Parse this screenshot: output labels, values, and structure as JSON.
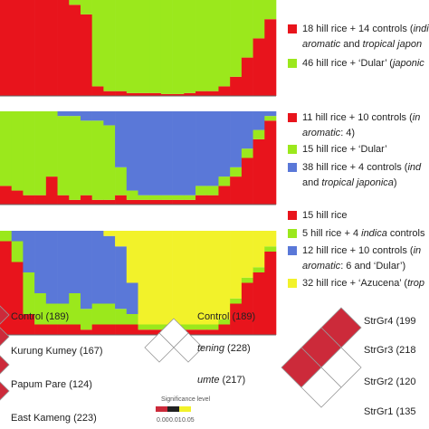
{
  "panels": [
    {
      "series": [
        {
          "color": "#e8141c",
          "values": [
            1,
            1,
            1,
            1,
            1,
            1,
            0.95,
            0.85,
            0.1,
            0.05,
            0.05,
            0.03,
            0.03,
            0.03,
            0.02,
            0.02,
            0.03,
            0.05,
            0.05,
            0.1,
            0.2,
            0.4,
            0.6,
            0.8
          ]
        },
        {
          "color": "#9be81c",
          "values": [
            0,
            0,
            0,
            0,
            0,
            0,
            0.05,
            0.15,
            0.9,
            0.95,
            0.95,
            0.97,
            0.97,
            0.97,
            0.98,
            0.98,
            0.97,
            0.95,
            0.95,
            0.9,
            0.8,
            0.6,
            0.4,
            0.2
          ]
        }
      ],
      "legend": [
        {
          "color": "#e8141c",
          "lines": [
            [
              {
                "text": "18 hill rice + 14 controls ("
              },
              {
                "text": "indic",
                "italic": true
              }
            ],
            [
              {
                "text": "aromatic",
                "italic": true
              },
              {
                "text": " and "
              },
              {
                "text": "tropical japon",
                "italic": true
              }
            ]
          ]
        },
        {
          "color": "#9be81c",
          "lines": [
            [
              {
                "text": "46 hill rice + ‘Dular’ ("
              },
              {
                "text": "japonic",
                "italic": true
              }
            ]
          ]
        }
      ]
    },
    {
      "series": [
        {
          "color": "#e8141c",
          "values": [
            0.2,
            0.15,
            0.1,
            0.1,
            0.3,
            0.1,
            0.05,
            0.1,
            0.05,
            0.05,
            0.1,
            0.05,
            0.05,
            0.05,
            0.05,
            0.05,
            0.05,
            0.1,
            0.1,
            0.2,
            0.3,
            0.5,
            0.7,
            0.9
          ]
        },
        {
          "color": "#9be81c",
          "values": [
            0.8,
            0.85,
            0.9,
            0.9,
            0.7,
            0.85,
            0.9,
            0.8,
            0.85,
            0.8,
            0.3,
            0.1,
            0.05,
            0.05,
            0.05,
            0.05,
            0.05,
            0.1,
            0.1,
            0.1,
            0.1,
            0.1,
            0.1,
            0.05
          ]
        },
        {
          "color": "#5a78d8",
          "values": [
            0,
            0,
            0,
            0,
            0,
            0.05,
            0.05,
            0.1,
            0.1,
            0.15,
            0.6,
            0.85,
            0.9,
            0.9,
            0.9,
            0.9,
            0.9,
            0.8,
            0.8,
            0.7,
            0.6,
            0.4,
            0.2,
            0.05
          ]
        }
      ],
      "legend": [
        {
          "color": "#e8141c",
          "lines": [
            [
              {
                "text": "11 hill rice + 10 controls ("
              },
              {
                "text": "in",
                "italic": true
              }
            ],
            [
              {
                "text": "aromatic",
                "italic": true
              },
              {
                "text": ": 4)"
              }
            ]
          ]
        },
        {
          "color": "#9be81c",
          "lines": [
            [
              {
                "text": "15 hill rice + ‘Dular’"
              }
            ]
          ]
        },
        {
          "color": "#5a78d8",
          "lines": [
            [
              {
                "text": "38 hill rice + 4 controls ("
              },
              {
                "text": "ind",
                "italic": true
              }
            ],
            [
              {
                "text": "and "
              },
              {
                "text": "tropical japonica",
                "italic": true
              },
              {
                "text": ")"
              }
            ]
          ]
        }
      ]
    },
    {
      "series": [
        {
          "color": "#e8141c",
          "values": [
            0.9,
            0.7,
            0.2,
            0.1,
            0.1,
            0.1,
            0.1,
            0.05,
            0.1,
            0.1,
            0.1,
            0.1,
            0.05,
            0.05,
            0.05,
            0.05,
            0.05,
            0.05,
            0.05,
            0.1,
            0.3,
            0.5,
            0.6,
            0.8
          ]
        },
        {
          "color": "#9be81c",
          "values": [
            0.1,
            0.2,
            0.4,
            0.3,
            0.2,
            0.2,
            0.3,
            0.2,
            0.2,
            0.2,
            0.15,
            0.1,
            0.05,
            0.05,
            0.05,
            0.05,
            0.05,
            0.05,
            0.05,
            0.05,
            0.05,
            0.05,
            0.05,
            0.05
          ]
        },
        {
          "color": "#5a78d8",
          "values": [
            0,
            0.1,
            0.4,
            0.6,
            0.7,
            0.7,
            0.6,
            0.75,
            0.7,
            0.65,
            0.6,
            0.3,
            0,
            0,
            0,
            0,
            0,
            0,
            0,
            0,
            0,
            0,
            0,
            0
          ]
        },
        {
          "color": "#f2f22a",
          "values": [
            0,
            0,
            0,
            0,
            0,
            0,
            0,
            0,
            0,
            0.05,
            0.15,
            0.5,
            0.9,
            0.9,
            0.9,
            0.9,
            0.9,
            0.9,
            0.9,
            0.85,
            0.65,
            0.45,
            0.35,
            0.15
          ]
        }
      ],
      "legend": [
        {
          "color": "#e8141c",
          "lines": [
            [
              {
                "text": "15 hill rice"
              }
            ]
          ]
        },
        {
          "color": "#9be81c",
          "lines": [
            [
              {
                "text": "5 hill rice + 4 "
              },
              {
                "text": "indica",
                "italic": true
              },
              {
                "text": " controls"
              }
            ]
          ]
        },
        {
          "color": "#5a78d8",
          "lines": [
            [
              {
                "text": "12 hill rice + 10 controls ("
              },
              {
                "text": "in",
                "italic": true
              }
            ],
            [
              {
                "text": "aromatic",
                "italic": true
              },
              {
                "text": ": 6 and ‘Dular’)"
              }
            ]
          ]
        },
        {
          "color": "#f2f22a",
          "lines": [
            [
              {
                "text": "32 hill rice + ‘Azucena’ ("
              },
              {
                "text": "trop",
                "italic": true
              }
            ]
          ]
        }
      ]
    }
  ],
  "groups": [
    {
      "labels": [
        [
          {
            "text": "Control (189)"
          }
        ],
        [
          {
            "text": "Kurung Kumey (167)"
          }
        ],
        [
          {
            "text": "Papum Pare (124)"
          }
        ],
        [
          {
            "text": "East Kameng (223)"
          }
        ]
      ],
      "cells": [
        "#cc2a3a",
        "#cc2a3a",
        "#cc2a3a",
        "#cc2a3a"
      ]
    },
    {
      "labels": [
        [
          {
            "text": "Control (189)"
          }
        ],
        [
          {
            "text": "tening",
            "italic": true
          },
          {
            "text": " (228)"
          }
        ],
        [
          {
            "text": "umte",
            "italic": true
          },
          {
            "text": " (217)"
          }
        ]
      ],
      "cells": [
        "#ffffff",
        "#ffffff",
        "#ffffff"
      ]
    },
    {
      "labels": [
        [
          {
            "text": "StrGr4 (199"
          }
        ],
        [
          {
            "text": "StrGr3 (218"
          }
        ],
        [
          {
            "text": "StrGr2 (120"
          }
        ],
        [
          {
            "text": "StrGr1 (135"
          }
        ]
      ],
      "cells": [
        "#cc2a3a",
        "#cc2a3a",
        "#ffffff",
        "#cc2a3a",
        "#ffffff",
        "#cc2a3a"
      ]
    }
  ],
  "significance": {
    "title": "Significance level",
    "colors": [
      "#cc2a3a",
      "#222222",
      "#f2f22a"
    ],
    "labels": [
      "0.00",
      "0.01",
      "0.05"
    ]
  }
}
